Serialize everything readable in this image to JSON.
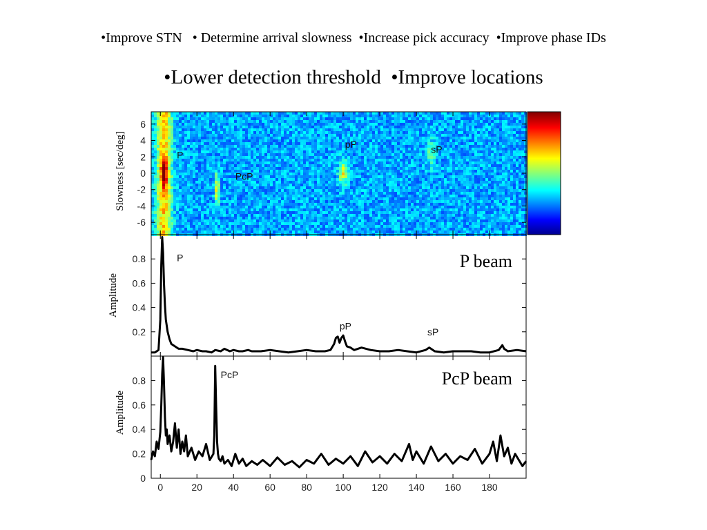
{
  "header": {
    "line1": "•Improve STN   • Determine arrival slowness  •Increase pick accuracy  •Improve phase IDs",
    "line2": "•Lower detection threshold  •Improve locations"
  },
  "chart_data": [
    {
      "type": "heatmap",
      "title": "",
      "ylabel": "Slowness [sec/deg]",
      "ylim": [
        -7.5,
        7.5
      ],
      "xlim": [
        -5,
        200
      ],
      "ytick_labels": [
        "6",
        "4",
        "2",
        "0",
        "-2",
        "-4",
        "-6"
      ],
      "yticks": [
        6,
        4,
        2,
        0,
        -2,
        -4,
        -6
      ],
      "colormap": "jet",
      "annotations": [
        {
          "text": "P",
          "x": 9,
          "y": 1.8
        },
        {
          "text": "PcP",
          "x": 41,
          "y": -0.8
        },
        {
          "text": "pP",
          "x": 101,
          "y": 3.1
        },
        {
          "text": "sP",
          "x": 148,
          "y": 2.5
        }
      ]
    },
    {
      "type": "line",
      "title": "P beam",
      "ylabel": "Amplitude",
      "ylim": [
        0,
        1.0
      ],
      "xlim": [
        -5,
        200
      ],
      "ytick_labels": [
        "0.2",
        "0.4",
        "0.6",
        "0.8"
      ],
      "yticks": [
        0.2,
        0.4,
        0.6,
        0.8
      ],
      "annotations": [
        {
          "text": "P",
          "x": 9,
          "y": 0.78
        },
        {
          "text": "pP",
          "x": 98,
          "y": 0.22
        },
        {
          "text": "sP",
          "x": 146,
          "y": 0.17
        }
      ],
      "series": [
        {
          "x": [
            -5,
            -3,
            -1,
            0,
            0.5,
            1,
            1.5,
            2,
            2.5,
            3,
            4,
            5,
            6,
            8,
            10,
            12,
            15,
            18,
            20,
            23,
            25,
            28,
            30,
            33,
            35,
            38,
            40,
            43,
            45,
            48,
            50,
            55,
            60,
            65,
            70,
            75,
            80,
            85,
            90,
            93,
            95,
            96,
            97,
            98,
            99,
            100,
            101,
            102,
            104,
            106,
            108,
            110,
            115,
            120,
            125,
            130,
            135,
            140,
            145,
            147,
            148,
            150,
            155,
            160,
            165,
            170,
            175,
            180,
            185,
            187,
            188,
            190,
            195,
            200
          ],
          "y": [
            0.03,
            0.03,
            0.05,
            0.3,
            0.75,
            0.98,
            0.85,
            0.6,
            0.42,
            0.3,
            0.2,
            0.14,
            0.1,
            0.08,
            0.06,
            0.06,
            0.05,
            0.04,
            0.05,
            0.04,
            0.04,
            0.03,
            0.05,
            0.04,
            0.06,
            0.04,
            0.05,
            0.04,
            0.04,
            0.05,
            0.04,
            0.04,
            0.05,
            0.04,
            0.03,
            0.04,
            0.05,
            0.04,
            0.04,
            0.05,
            0.1,
            0.15,
            0.16,
            0.11,
            0.15,
            0.17,
            0.12,
            0.08,
            0.07,
            0.05,
            0.06,
            0.07,
            0.05,
            0.04,
            0.04,
            0.05,
            0.04,
            0.03,
            0.05,
            0.07,
            0.06,
            0.04,
            0.03,
            0.04,
            0.04,
            0.04,
            0.03,
            0.03,
            0.05,
            0.09,
            0.06,
            0.04,
            0.05,
            0.04
          ]
        }
      ]
    },
    {
      "type": "line",
      "title": "PcP beam",
      "ylabel": "Amplitude",
      "xlabel": "",
      "ylim": [
        0,
        1.0
      ],
      "xlim": [
        -5,
        200
      ],
      "ytick_labels": [
        "0",
        "0.2",
        "0.4",
        "0.6",
        "0.8"
      ],
      "yticks": [
        0,
        0.2,
        0.4,
        0.6,
        0.8
      ],
      "xtick_labels": [
        "0",
        "20",
        "40",
        "60",
        "80",
        "100",
        "120",
        "140",
        "160",
        "180"
      ],
      "xticks": [
        0,
        20,
        40,
        60,
        80,
        100,
        120,
        140,
        160,
        180
      ],
      "annotations": [
        {
          "text": "PcP",
          "x": 33,
          "y": 0.82
        }
      ],
      "series": [
        {
          "x": [
            -5,
            -4,
            -3,
            -2,
            -1,
            0,
            0.5,
            1,
            1.5,
            2,
            2.5,
            3,
            3.5,
            4,
            5,
            6,
            7,
            8,
            9,
            10,
            11,
            12,
            13,
            14,
            15,
            17,
            19,
            21,
            23,
            25,
            27,
            29,
            29.5,
            30,
            30.5,
            31,
            31.5,
            32,
            33,
            34,
            35,
            37,
            39,
            41,
            43,
            45,
            47,
            50,
            53,
            56,
            60,
            64,
            68,
            72,
            76,
            80,
            84,
            88,
            92,
            96,
            100,
            104,
            108,
            112,
            116,
            120,
            124,
            128,
            132,
            136,
            138,
            140,
            144,
            148,
            152,
            156,
            160,
            164,
            168,
            172,
            176,
            180,
            182,
            184,
            186,
            188,
            190,
            192,
            194,
            196,
            198,
            200
          ],
          "y": [
            0.15,
            0.22,
            0.18,
            0.3,
            0.24,
            0.38,
            0.6,
            0.85,
            0.99,
            0.78,
            0.5,
            0.35,
            0.4,
            0.28,
            0.35,
            0.22,
            0.3,
            0.45,
            0.25,
            0.4,
            0.2,
            0.3,
            0.22,
            0.35,
            0.18,
            0.25,
            0.15,
            0.22,
            0.18,
            0.28,
            0.15,
            0.2,
            0.35,
            0.92,
            0.6,
            0.3,
            0.2,
            0.16,
            0.14,
            0.18,
            0.12,
            0.15,
            0.1,
            0.2,
            0.12,
            0.16,
            0.1,
            0.14,
            0.11,
            0.15,
            0.1,
            0.17,
            0.11,
            0.14,
            0.09,
            0.15,
            0.12,
            0.2,
            0.11,
            0.16,
            0.12,
            0.18,
            0.1,
            0.22,
            0.13,
            0.18,
            0.12,
            0.2,
            0.14,
            0.28,
            0.15,
            0.22,
            0.12,
            0.26,
            0.14,
            0.2,
            0.12,
            0.18,
            0.15,
            0.24,
            0.12,
            0.2,
            0.3,
            0.14,
            0.35,
            0.18,
            0.25,
            0.12,
            0.2,
            0.15,
            0.1,
            0.14
          ]
        }
      ]
    }
  ]
}
